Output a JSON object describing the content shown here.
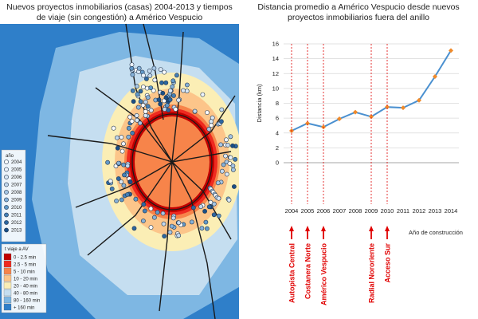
{
  "map": {
    "title": "Nuevos proyectos inmobiliarios (casas) 2004-2013 y tiempos de viaje (sin congestión) a Américo Vespucio",
    "legend_year_title": "año",
    "years": [
      {
        "label": "2004",
        "color": "#ffffff"
      },
      {
        "label": "2005",
        "color": "#eef4fb"
      },
      {
        "label": "2006",
        "color": "#d9e7f5"
      },
      {
        "label": "2007",
        "color": "#c2d8ee"
      },
      {
        "label": "2008",
        "color": "#a6c6e4"
      },
      {
        "label": "2009",
        "color": "#86b1d8"
      },
      {
        "label": "2010",
        "color": "#6199c9"
      },
      {
        "label": "2011",
        "color": "#447fb6"
      },
      {
        "label": "2012",
        "color": "#2c66a0"
      },
      {
        "label": "2013",
        "color": "#194e86"
      }
    ],
    "legend_time_title": "t viaje a AV",
    "times": [
      {
        "label": "0 - 2.5 min",
        "color": "#c00000"
      },
      {
        "label": "2.5 - 5 min",
        "color": "#ee2a20"
      },
      {
        "label": "5 - 10 min",
        "color": "#f7844a"
      },
      {
        "label": "10 - 20 min",
        "color": "#fcc58a"
      },
      {
        "label": "20 - 40 min",
        "color": "#fbeeb5"
      },
      {
        "label": "40 - 80 min",
        "color": "#c5def0"
      },
      {
        "label": "80 - 160 min",
        "color": "#7eb7e3"
      },
      {
        "label": "+ 160 min",
        "color": "#2f7fc9"
      }
    ]
  },
  "chart_data": {
    "type": "line",
    "title": "Distancia promedio a Américo Vespucio desde nuevos proyectos inmobiliarios fuera del anillo",
    "xlabel": "Año de construcción",
    "ylabel": "Distancia (km)",
    "categories": [
      "2004",
      "2005",
      "2006",
      "2007",
      "2008",
      "2009",
      "2010",
      "2011",
      "2012",
      "2013",
      "2014"
    ],
    "values": [
      4.3,
      5.3,
      4.8,
      5.9,
      6.8,
      6.2,
      7.5,
      7.4,
      8.4,
      11.6,
      15.1
    ],
    "ylim": [
      0,
      16
    ],
    "yticks": [
      0,
      2,
      4,
      6,
      8,
      10,
      12,
      14,
      16
    ],
    "line_color": "#4a90d0",
    "marker_color": "#f08a2a",
    "annotations": [
      {
        "year": "2004",
        "label": "Autopista Central"
      },
      {
        "year": "2005",
        "label": "Costanera Norte"
      },
      {
        "year": "2006",
        "label": "Américo Vespucio"
      },
      {
        "year": "2009",
        "label": "Radial Nororiente"
      },
      {
        "year": "2010",
        "label": "Acceso Sur"
      }
    ],
    "annotation_color": "#e00000"
  }
}
